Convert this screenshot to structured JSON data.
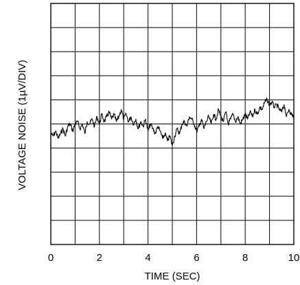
{
  "chart_data": {
    "type": "line",
    "xlabel": "TIME (SEC)",
    "ylabel": "VOLTAGE NOISE (1µV/DIV)",
    "xlim": [
      0,
      10
    ],
    "ylim": [
      -5,
      5
    ],
    "x_tick_labels": [
      "0",
      "2",
      "4",
      "6",
      "8",
      "10"
    ],
    "x_tick_values": [
      0,
      2,
      4,
      6,
      8,
      10
    ],
    "grid": true,
    "x_divisions": 10,
    "y_divisions": 10,
    "series": [
      {
        "x": [
          0,
          0.1,
          0.2,
          0.3,
          0.4,
          0.5,
          0.6,
          0.7,
          0.8,
          0.9,
          1.0,
          1.1,
          1.2,
          1.3,
          1.4,
          1.5,
          1.6,
          1.7,
          1.8,
          1.9,
          2.0,
          2.1,
          2.2,
          2.3,
          2.4,
          2.5,
          2.6,
          2.7,
          2.8,
          2.9,
          3.0,
          3.1,
          3.2,
          3.3,
          3.4,
          3.5,
          3.6,
          3.7,
          3.8,
          3.9,
          4.0,
          4.1,
          4.2,
          4.3,
          4.4,
          4.5,
          4.6,
          4.7,
          4.8,
          4.9,
          5.0,
          5.1,
          5.2,
          5.3,
          5.4,
          5.5,
          5.6,
          5.7,
          5.8,
          5.9,
          6.0,
          6.1,
          6.2,
          6.3,
          6.4,
          6.5,
          6.6,
          6.7,
          6.8,
          6.9,
          7.0,
          7.1,
          7.2,
          7.3,
          7.4,
          7.5,
          7.6,
          7.7,
          7.8,
          7.9,
          8.0,
          8.1,
          8.2,
          8.3,
          8.4,
          8.5,
          8.6,
          8.7,
          8.8,
          8.9,
          9.0,
          9.1,
          9.2,
          9.3,
          9.4,
          9.5,
          9.6,
          9.7,
          9.8,
          9.9,
          10.0
        ],
        "values": [
          -0.4,
          -0.5,
          -0.3,
          -0.6,
          -0.4,
          -0.2,
          -0.5,
          -0.1,
          0.0,
          -0.3,
          0.0,
          0.1,
          -0.2,
          0.0,
          -0.4,
          0.1,
          0.0,
          0.2,
          -0.1,
          0.3,
          0.0,
          0.4,
          0.1,
          0.3,
          0.5,
          0.2,
          0.4,
          0.1,
          0.3,
          0.6,
          0.2,
          0.4,
          0.1,
          0.3,
          0.0,
          0.2,
          -0.2,
          0.1,
          -0.1,
          0.2,
          -0.3,
          0.0,
          -0.2,
          -0.4,
          -0.1,
          -0.3,
          -0.6,
          -0.4,
          -0.7,
          -0.5,
          -0.9,
          -0.5,
          -0.2,
          -0.4,
          0.0,
          0.1,
          -0.1,
          0.3,
          0.2,
          0.0,
          -0.3,
          -0.1,
          0.2,
          -0.2,
          0.1,
          0.3,
          0.0,
          0.4,
          0.2,
          0.6,
          0.3,
          0.1,
          0.5,
          0.0,
          0.2,
          0.4,
          0.1,
          0.3,
          0.0,
          0.2,
          0.4,
          0.2,
          0.5,
          0.3,
          0.6,
          0.4,
          0.7,
          0.6,
          0.9,
          1.0,
          0.8,
          0.9,
          0.7,
          0.8,
          0.6,
          0.5,
          0.8,
          0.3,
          0.6,
          0.4,
          0.3
        ]
      }
    ]
  }
}
